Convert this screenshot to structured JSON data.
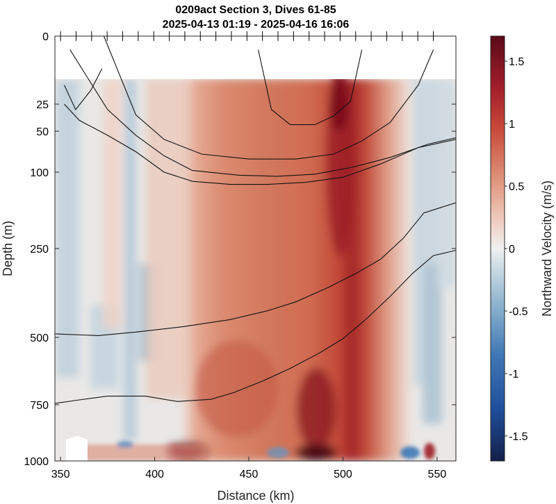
{
  "chart_data": {
    "type": "heatmap",
    "title": "0209act Section 3, Dives 61-85",
    "subtitle": "2025-04-13 01:19 - 2025-04-16 16:06",
    "xlabel": "Distance (km)",
    "ylabel": "Depth (m)",
    "colorbar_label": "Northward Velocity (m/s)",
    "xlim": [
      347,
      560
    ],
    "x_ticks": [
      350,
      400,
      450,
      500,
      550
    ],
    "y_ticks": [
      0,
      25,
      50,
      100,
      250,
      500,
      750,
      1000
    ],
    "y_tick_labels": [
      "0",
      "25",
      "50",
      "100",
      "250",
      "500",
      "750",
      "1000"
    ],
    "y_scale": "nonlinear (stretched near surface)",
    "colorbar_ticks": [
      -1.5,
      -1,
      -0.5,
      0,
      0.5,
      1,
      1.5
    ],
    "colorbar_tick_labels": [
      "-1.5",
      "-1",
      "-0.5",
      "0",
      "0.5",
      "1",
      "1.5"
    ],
    "clim": [
      -1.7,
      1.7
    ],
    "colormap": [
      "#14204a",
      "#1f4e9a",
      "#5b90c4",
      "#a9c5d9",
      "#e8eaec",
      "#f2c8b8",
      "#d9765a",
      "#b52a27",
      "#5a0a18"
    ],
    "dive_markers_top": "tick marks along top axis",
    "velocity_features": [
      {
        "name": "main northward jet",
        "x_range": [
          420,
          530
        ],
        "peak": 1.6,
        "core_x": 497,
        "depth": "surface to 1000"
      },
      {
        "name": "weak southward flow west",
        "x_range": [
          350,
          400
        ],
        "value": -0.3
      },
      {
        "name": "weak southward flow east",
        "x_range": [
          530,
          560
        ],
        "value": -0.3
      }
    ],
    "contour_lines": [
      {
        "points": [
          [
            352,
            18
          ],
          [
            358,
            30
          ],
          [
            366,
            20
          ],
          [
            372,
            12
          ]
        ]
      },
      {
        "points": [
          [
            352,
            25
          ],
          [
            360,
            40
          ],
          [
            375,
            55
          ],
          [
            390,
            75
          ],
          [
            405,
            100
          ],
          [
            420,
            118
          ],
          [
            440,
            124
          ],
          [
            460,
            124
          ],
          [
            480,
            120
          ],
          [
            500,
            110
          ],
          [
            520,
            90
          ],
          [
            540,
            70
          ],
          [
            560,
            60
          ]
        ]
      },
      {
        "points": [
          [
            355,
            5
          ],
          [
            375,
            30
          ],
          [
            390,
            55
          ],
          [
            405,
            80
          ],
          [
            420,
            98
          ],
          [
            445,
            106
          ],
          [
            465,
            108
          ],
          [
            485,
            104
          ],
          [
            505,
            94
          ],
          [
            525,
            82
          ],
          [
            545,
            66
          ],
          [
            560,
            58
          ]
        ]
      },
      {
        "points": [
          [
            373,
            0
          ],
          [
            390,
            35
          ],
          [
            405,
            60
          ],
          [
            425,
            78
          ],
          [
            450,
            84
          ],
          [
            475,
            84
          ],
          [
            495,
            78
          ],
          [
            510,
            62
          ],
          [
            525,
            42
          ],
          [
            540,
            18
          ],
          [
            548,
            5
          ]
        ]
      },
      {
        "points": [
          [
            455,
            5
          ],
          [
            462,
            30
          ],
          [
            472,
            44
          ],
          [
            485,
            44
          ],
          [
            495,
            36
          ],
          [
            504,
            24
          ],
          [
            510,
            5
          ]
        ]
      },
      {
        "points": [
          [
            347,
            490
          ],
          [
            370,
            495
          ],
          [
            390,
            485
          ],
          [
            415,
            470
          ],
          [
            440,
            450
          ],
          [
            460,
            425
          ],
          [
            475,
            400
          ],
          [
            492,
            360
          ],
          [
            507,
            320
          ],
          [
            520,
            280
          ],
          [
            532,
            230
          ],
          [
            543,
            180
          ],
          [
            560,
            160
          ]
        ]
      },
      {
        "points": [
          [
            347,
            745
          ],
          [
            360,
            732
          ],
          [
            375,
            718
          ],
          [
            395,
            718
          ],
          [
            412,
            738
          ],
          [
            430,
            730
          ],
          [
            442,
            705
          ],
          [
            458,
            660
          ],
          [
            472,
            615
          ],
          [
            487,
            560
          ],
          [
            500,
            505
          ],
          [
            512,
            450
          ],
          [
            525,
            385
          ],
          [
            537,
            320
          ],
          [
            548,
            270
          ],
          [
            560,
            255
          ]
        ]
      }
    ]
  }
}
